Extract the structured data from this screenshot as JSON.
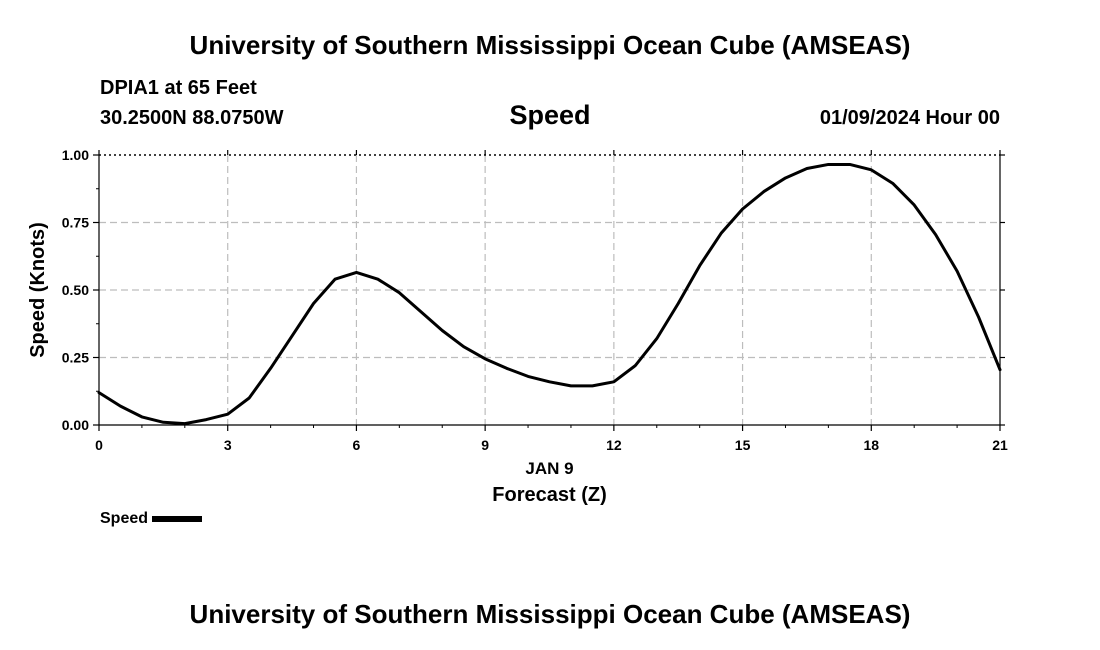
{
  "header": {
    "title": "University of Southern Mississippi Ocean Cube (AMSEAS)",
    "station": "DPIA1 at 65 Feet",
    "coordinates": "30.2500N  88.0750W",
    "variable": "Speed",
    "datetime": "01/09/2024 Hour 00"
  },
  "footer": {
    "title": "University of Southern Mississippi Ocean Cube (AMSEAS)"
  },
  "legend": {
    "label": "Speed",
    "color": "#000000"
  },
  "chart_data": {
    "type": "line",
    "title": "Speed",
    "xlabel": "Forecast (Z)",
    "ylabel": "Speed (Knots)",
    "date_label": "JAN 9",
    "xlim": [
      0,
      21
    ],
    "ylim": [
      0,
      1
    ],
    "x_ticks": [
      0,
      3,
      6,
      9,
      12,
      15,
      18,
      21
    ],
    "y_ticks": [
      0,
      0.25,
      0.5,
      0.75,
      1.0
    ],
    "y_tick_labels": [
      "0.00",
      "0.25",
      "0.50",
      "0.75",
      "1.00"
    ],
    "grid": true,
    "legend_position": "bottom-left",
    "series": [
      {
        "name": "Speed",
        "color": "#000000",
        "x": [
          0,
          0.5,
          1,
          1.5,
          2,
          2.5,
          3,
          3.5,
          4,
          4.5,
          5,
          5.5,
          6,
          6.5,
          7,
          7.5,
          8,
          8.5,
          9,
          9.5,
          10,
          10.5,
          11,
          11.5,
          12,
          12.5,
          13,
          13.5,
          14,
          14.5,
          15,
          15.5,
          16,
          16.5,
          17,
          17.5,
          18,
          18.5,
          19,
          19.5,
          20,
          20.5,
          21
        ],
        "y": [
          0.12,
          0.07,
          0.03,
          0.01,
          0.005,
          0.02,
          0.04,
          0.1,
          0.21,
          0.33,
          0.45,
          0.54,
          0.565,
          0.54,
          0.49,
          0.42,
          0.35,
          0.29,
          0.245,
          0.21,
          0.18,
          0.16,
          0.145,
          0.145,
          0.16,
          0.22,
          0.32,
          0.45,
          0.59,
          0.71,
          0.8,
          0.865,
          0.915,
          0.95,
          0.965,
          0.965,
          0.945,
          0.895,
          0.815,
          0.705,
          0.57,
          0.4,
          0.205
        ]
      }
    ]
  }
}
